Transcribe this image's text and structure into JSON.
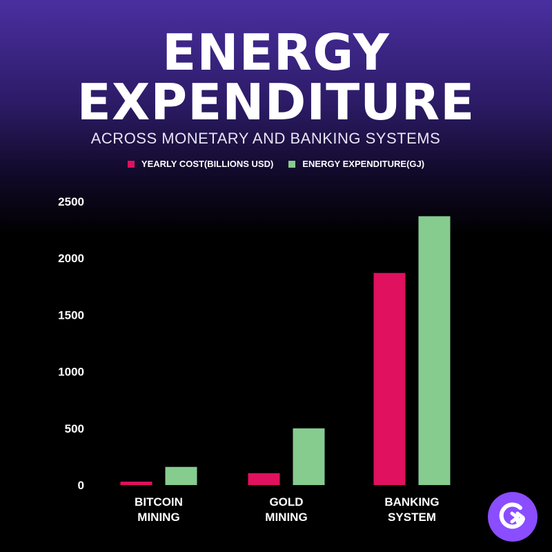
{
  "header": {
    "title_line1": "ENERGY",
    "title_line2": "EXPENDITURE",
    "subtitle": "ACROSS MONETARY AND BANKING SYSTEMS"
  },
  "colors": {
    "cost": "#e0115f",
    "energy": "#86cc8f",
    "logo": "#8a4dff"
  },
  "chart_data": {
    "type": "bar",
    "title": "ENERGY EXPENDITURE",
    "subtitle": "ACROSS MONETARY AND BANKING SYSTEMS",
    "categories": [
      [
        "BITCOIN",
        "MINING"
      ],
      [
        "GOLD",
        "MINING"
      ],
      [
        "BANKING",
        "SYSTEM"
      ]
    ],
    "series": [
      {
        "name": "YEARLY COST(BILLIONS USD)",
        "values": [
          30,
          105,
          1870
        ]
      },
      {
        "name": "ENERGY EXPENDITURE(GJ)",
        "values": [
          160,
          500,
          2370
        ]
      }
    ],
    "yticks": [
      0,
      500,
      1000,
      1500,
      2000,
      2500
    ],
    "ylim": [
      0,
      2500
    ],
    "xlabel": "",
    "ylabel": "",
    "grid": false,
    "legend": "top-center"
  }
}
